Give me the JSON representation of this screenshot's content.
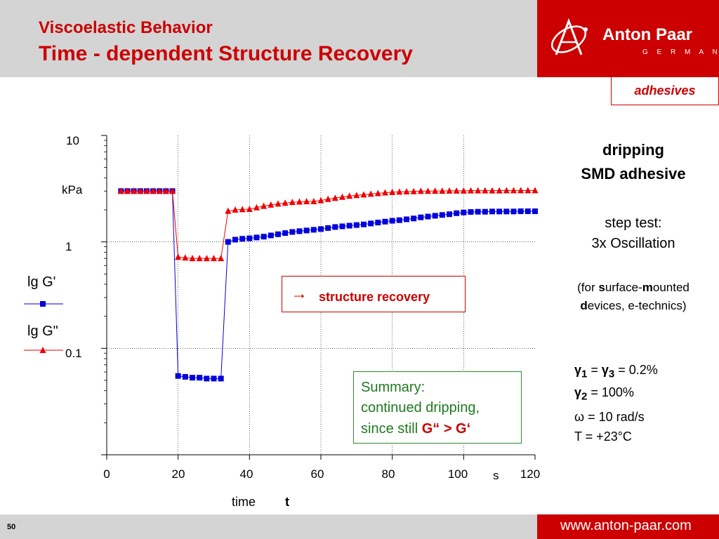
{
  "header": {
    "title": "Viscoelastic Behavior",
    "subtitle": "Time - dependent Structure Recovery",
    "brand_name": "Anton Paar",
    "brand_country": "G E R M A N Y"
  },
  "tag": "adhesives",
  "footer": {
    "page_number": "50",
    "website": "www.anton-paar.com"
  },
  "annotations": {
    "arrow_symbol": "→",
    "recovery": "structure recovery",
    "summary_line1": "Summary:",
    "summary_line2": "continued dripping,",
    "summary_line3_pre": "since still ",
    "summary_line3_bold": "G“ > G‘"
  },
  "side": {
    "heading1": "dripping",
    "heading2": "SMD adhesive",
    "step1": "step test:",
    "step2": "3x Oscillation",
    "note_pre": "(for ",
    "note_s": "s",
    "note_mid": "urface-",
    "note_m": "m",
    "note_post": "ounted",
    "note2_d": "d",
    "note2_rest": "evices, e-technics)",
    "params": [
      {
        "sym": "γ",
        "sub": "1",
        "eq": " = ",
        "sym2": "γ",
        "sub2": "3",
        "val": " = 0.2%"
      },
      {
        "sym": "γ",
        "sub": "2",
        "val": " = 100%"
      },
      {
        "sym": "ω",
        "val": " = 10 rad/s"
      },
      {
        "sym": "T",
        "val": " = +23°C"
      }
    ]
  },
  "colors": {
    "brand": "#cc0000",
    "gprime": "#0000dd",
    "gdouble": "#ee0000",
    "summary": "#1f7a1f"
  },
  "chart_data": {
    "type": "scatter",
    "title": "",
    "xlabel": "time",
    "xlabel_symbol": "t",
    "x_unit": "s",
    "ylabel_unit": "kPa",
    "yscale": "log",
    "xlim": [
      0,
      120
    ],
    "ylim": [
      0.01,
      10
    ],
    "x_ticks": [
      0,
      20,
      40,
      60,
      80,
      100,
      120
    ],
    "x_tick_labels": [
      "0",
      "20",
      "40",
      "60",
      "80",
      "100",
      "120"
    ],
    "y_tick_labels": [
      {
        "value": 10,
        "label": "10"
      },
      {
        "value": 1,
        "label": "1"
      },
      {
        "value": 0.1,
        "label": "0.1"
      }
    ],
    "grid": true,
    "legend_position": "left",
    "series": [
      {
        "name": "lg G'",
        "marker": "square",
        "x": [
          4,
          5.8,
          7.6,
          9.4,
          11.2,
          13,
          14.8,
          16.6,
          18.4,
          20,
          22,
          24,
          26,
          28,
          30,
          32,
          34,
          36,
          38,
          40,
          42,
          44,
          46,
          48,
          50,
          52,
          54,
          56,
          58,
          60,
          62,
          64,
          66,
          68,
          70,
          72,
          74,
          76,
          78,
          80,
          82,
          84,
          86,
          88,
          90,
          92,
          94,
          96,
          98,
          100,
          102,
          104,
          106,
          108,
          110,
          112,
          114,
          116,
          118,
          120
        ],
        "y": [
          3.0,
          3.0,
          3.0,
          3.0,
          3.0,
          3.0,
          3.0,
          3.0,
          3.0,
          0.055,
          0.054,
          0.053,
          0.053,
          0.052,
          0.052,
          0.052,
          1.0,
          1.05,
          1.07,
          1.08,
          1.1,
          1.12,
          1.15,
          1.18,
          1.21,
          1.24,
          1.26,
          1.28,
          1.3,
          1.32,
          1.35,
          1.38,
          1.4,
          1.42,
          1.44,
          1.46,
          1.49,
          1.52,
          1.55,
          1.58,
          1.6,
          1.63,
          1.66,
          1.7,
          1.73,
          1.76,
          1.79,
          1.82,
          1.86,
          1.89,
          1.91,
          1.92,
          1.92,
          1.93,
          1.93,
          1.93,
          1.93,
          1.94,
          1.94,
          1.94
        ]
      },
      {
        "name": "lg G\"",
        "marker": "triangle",
        "x": [
          4,
          5.8,
          7.6,
          9.4,
          11.2,
          13,
          14.8,
          16.6,
          18.4,
          20,
          22,
          24,
          26,
          28,
          30,
          32,
          34,
          36,
          38,
          40,
          42,
          44,
          46,
          48,
          50,
          52,
          54,
          56,
          58,
          60,
          62,
          64,
          66,
          68,
          70,
          72,
          74,
          76,
          78,
          80,
          82,
          84,
          86,
          88,
          90,
          92,
          94,
          96,
          98,
          100,
          102,
          104,
          106,
          108,
          110,
          112,
          114,
          116,
          118,
          120
        ],
        "y": [
          3.0,
          3.0,
          3.0,
          3.0,
          3.0,
          3.0,
          3.0,
          3.0,
          3.0,
          0.72,
          0.71,
          0.7,
          0.7,
          0.7,
          0.7,
          0.7,
          1.95,
          2.0,
          2.02,
          2.03,
          2.1,
          2.17,
          2.23,
          2.28,
          2.32,
          2.36,
          2.38,
          2.4,
          2.4,
          2.45,
          2.52,
          2.58,
          2.64,
          2.7,
          2.74,
          2.78,
          2.82,
          2.86,
          2.9,
          2.93,
          2.95,
          2.97,
          2.98,
          3.0,
          3.0,
          3.01,
          3.01,
          3.02,
          3.02,
          3.02,
          3.03,
          3.03,
          3.03,
          3.03,
          3.03,
          3.04,
          3.04,
          3.04,
          3.04,
          3.04
        ]
      }
    ]
  }
}
